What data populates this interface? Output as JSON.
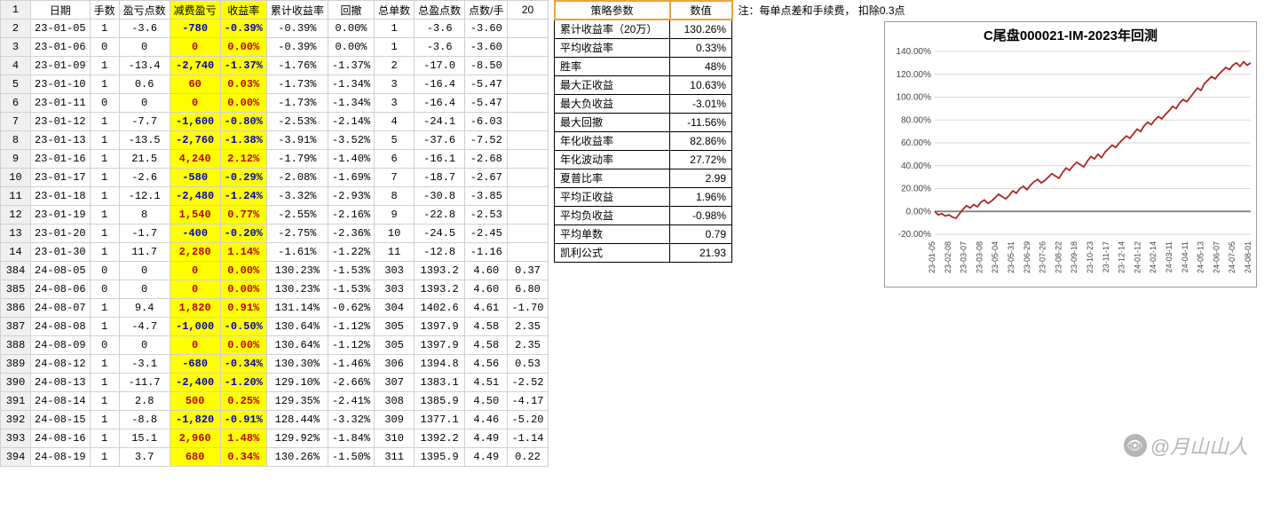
{
  "columns": [
    "日期",
    "手数",
    "盈亏点数",
    "减费盈亏",
    "收益率",
    "累计收益率",
    "回撤",
    "总单数",
    "总盈点数",
    "点数/手",
    "20"
  ],
  "rows": [
    {
      "r": 1,
      "hdr": true
    },
    {
      "r": 2,
      "d": "23-01-05",
      "l": 1,
      "p": "-3.6",
      "f": "-780",
      "rt": "-0.39%",
      "c": "-0.39%",
      "dd": "0.00%",
      "n": 1,
      "tp": "-3.6",
      "pp": "-3.60",
      "t20": ""
    },
    {
      "r": 3,
      "d": "23-01-06",
      "l": 0,
      "p": "0",
      "f": "0",
      "rt": "0.00%",
      "c": "-0.39%",
      "dd": "0.00%",
      "n": 1,
      "tp": "-3.6",
      "pp": "-3.60",
      "t20": ""
    },
    {
      "r": 4,
      "d": "23-01-09",
      "l": 1,
      "p": "-13.4",
      "f": "-2,740",
      "rt": "-1.37%",
      "c": "-1.76%",
      "dd": "-1.37%",
      "n": 2,
      "tp": "-17.0",
      "pp": "-8.50",
      "t20": ""
    },
    {
      "r": 5,
      "d": "23-01-10",
      "l": 1,
      "p": "0.6",
      "f": "60",
      "rt": "0.03%",
      "c": "-1.73%",
      "dd": "-1.34%",
      "n": 3,
      "tp": "-16.4",
      "pp": "-5.47",
      "t20": ""
    },
    {
      "r": 6,
      "d": "23-01-11",
      "l": 0,
      "p": "0",
      "f": "0",
      "rt": "0.00%",
      "c": "-1.73%",
      "dd": "-1.34%",
      "n": 3,
      "tp": "-16.4",
      "pp": "-5.47",
      "t20": ""
    },
    {
      "r": 7,
      "d": "23-01-12",
      "l": 1,
      "p": "-7.7",
      "f": "-1,600",
      "rt": "-0.80%",
      "c": "-2.53%",
      "dd": "-2.14%",
      "n": 4,
      "tp": "-24.1",
      "pp": "-6.03",
      "t20": ""
    },
    {
      "r": 8,
      "d": "23-01-13",
      "l": 1,
      "p": "-13.5",
      "f": "-2,760",
      "rt": "-1.38%",
      "c": "-3.91%",
      "dd": "-3.52%",
      "n": 5,
      "tp": "-37.6",
      "pp": "-7.52",
      "t20": ""
    },
    {
      "r": 9,
      "d": "23-01-16",
      "l": 1,
      "p": "21.5",
      "f": "4,240",
      "rt": "2.12%",
      "c": "-1.79%",
      "dd": "-1.40%",
      "n": 6,
      "tp": "-16.1",
      "pp": "-2.68",
      "t20": ""
    },
    {
      "r": 10,
      "d": "23-01-17",
      "l": 1,
      "p": "-2.6",
      "f": "-580",
      "rt": "-0.29%",
      "c": "-2.08%",
      "dd": "-1.69%",
      "n": 7,
      "tp": "-18.7",
      "pp": "-2.67",
      "t20": ""
    },
    {
      "r": 11,
      "d": "23-01-18",
      "l": 1,
      "p": "-12.1",
      "f": "-2,480",
      "rt": "-1.24%",
      "c": "-3.32%",
      "dd": "-2.93%",
      "n": 8,
      "tp": "-30.8",
      "pp": "-3.85",
      "t20": ""
    },
    {
      "r": 12,
      "d": "23-01-19",
      "l": 1,
      "p": "8",
      "f": "1,540",
      "rt": "0.77%",
      "c": "-2.55%",
      "dd": "-2.16%",
      "n": 9,
      "tp": "-22.8",
      "pp": "-2.53",
      "t20": ""
    },
    {
      "r": 13,
      "d": "23-01-20",
      "l": 1,
      "p": "-1.7",
      "f": "-400",
      "rt": "-0.20%",
      "c": "-2.75%",
      "dd": "-2.36%",
      "n": 10,
      "tp": "-24.5",
      "pp": "-2.45",
      "t20": ""
    },
    {
      "r": 14,
      "d": "23-01-30",
      "l": 1,
      "p": "11.7",
      "f": "2,280",
      "rt": "1.14%",
      "c": "-1.61%",
      "dd": "-1.22%",
      "n": 11,
      "tp": "-12.8",
      "pp": "-1.16",
      "t20": ""
    },
    {
      "r": 384,
      "d": "24-08-05",
      "l": 0,
      "p": "0",
      "f": "0",
      "rt": "0.00%",
      "c": "130.23%",
      "dd": "-1.53%",
      "n": 303,
      "tp": "1393.2",
      "pp": "4.60",
      "t20": "0.37"
    },
    {
      "r": 385,
      "d": "24-08-06",
      "l": 0,
      "p": "0",
      "f": "0",
      "rt": "0.00%",
      "c": "130.23%",
      "dd": "-1.53%",
      "n": 303,
      "tp": "1393.2",
      "pp": "4.60",
      "t20": "6.80"
    },
    {
      "r": 386,
      "d": "24-08-07",
      "l": 1,
      "p": "9.4",
      "f": "1,820",
      "rt": "0.91%",
      "c": "131.14%",
      "dd": "-0.62%",
      "n": 304,
      "tp": "1402.6",
      "pp": "4.61",
      "t20": "-1.70"
    },
    {
      "r": 387,
      "d": "24-08-08",
      "l": 1,
      "p": "-4.7",
      "f": "-1,000",
      "rt": "-0.50%",
      "c": "130.64%",
      "dd": "-1.12%",
      "n": 305,
      "tp": "1397.9",
      "pp": "4.58",
      "t20": "2.35"
    },
    {
      "r": 388,
      "d": "24-08-09",
      "l": 0,
      "p": "0",
      "f": "0",
      "rt": "0.00%",
      "c": "130.64%",
      "dd": "-1.12%",
      "n": 305,
      "tp": "1397.9",
      "pp": "4.58",
      "t20": "2.35"
    },
    {
      "r": 389,
      "d": "24-08-12",
      "l": 1,
      "p": "-3.1",
      "f": "-680",
      "rt": "-0.34%",
      "c": "130.30%",
      "dd": "-1.46%",
      "n": 306,
      "tp": "1394.8",
      "pp": "4.56",
      "t20": "0.53"
    },
    {
      "r": 390,
      "d": "24-08-13",
      "l": 1,
      "p": "-11.7",
      "f": "-2,400",
      "rt": "-1.20%",
      "c": "129.10%",
      "dd": "-2.66%",
      "n": 307,
      "tp": "1383.1",
      "pp": "4.51",
      "t20": "-2.52"
    },
    {
      "r": 391,
      "d": "24-08-14",
      "l": 1,
      "p": "2.8",
      "f": "500",
      "rt": "0.25%",
      "c": "129.35%",
      "dd": "-2.41%",
      "n": 308,
      "tp": "1385.9",
      "pp": "4.50",
      "t20": "-4.17"
    },
    {
      "r": 392,
      "d": "24-08-15",
      "l": 1,
      "p": "-8.8",
      "f": "-1,820",
      "rt": "-0.91%",
      "c": "128.44%",
      "dd": "-3.32%",
      "n": 309,
      "tp": "1377.1",
      "pp": "4.46",
      "t20": "-5.20"
    },
    {
      "r": 393,
      "d": "24-08-16",
      "l": 1,
      "p": "15.1",
      "f": "2,960",
      "rt": "1.48%",
      "c": "129.92%",
      "dd": "-1.84%",
      "n": 310,
      "tp": "1392.2",
      "pp": "4.49",
      "t20": "-1.14"
    },
    {
      "r": 394,
      "d": "24-08-19",
      "l": 1,
      "p": "3.7",
      "f": "680",
      "rt": "0.34%",
      "c": "130.26%",
      "dd": "-1.50%",
      "n": 311,
      "tp": "1395.9",
      "pp": "4.49",
      "t20": "0.22"
    }
  ],
  "params_header": [
    "策略参数",
    "数值"
  ],
  "note": "注：每单点差和手续费，  扣除0.3点",
  "params": [
    [
      "累计收益率（20万）",
      "130.26%"
    ],
    [
      "平均收益率",
      "0.33%"
    ],
    [
      "胜率",
      "48%"
    ],
    [
      "最大正收益",
      "10.63%"
    ],
    [
      "最大负收益",
      "-3.01%"
    ],
    [
      "最大回撤",
      "-11.56%"
    ],
    [
      "年化收益率",
      "82.86%"
    ],
    [
      "年化波动率",
      "27.72%"
    ],
    [
      "夏普比率",
      "2.99"
    ],
    [
      "平均正收益",
      "1.96%"
    ],
    [
      "平均负收益",
      "-0.98%"
    ],
    [
      "平均单数",
      "0.79"
    ],
    [
      "凯利公式",
      "21.93"
    ]
  ],
  "chart": {
    "title": "C尾盘000021-IM-2023年回测",
    "yticks": [
      "-20.00%",
      "0.00%",
      "20.00%",
      "40.00%",
      "60.00%",
      "80.00%",
      "100.00%",
      "120.00%",
      "140.00%"
    ],
    "xticks": [
      "23-01-05",
      "23-02-08",
      "23-03-07",
      "23-03-08",
      "23-05-04",
      "23-05-31",
      "23-06-29",
      "23-07-26",
      "23-08-22",
      "23-09-18",
      "23-10-23",
      "23-11-17",
      "23-12-14",
      "24-01-12",
      "24-02-14",
      "24-03-11",
      "24-04-11",
      "24-05-13",
      "24-06-07",
      "24-07-05",
      "24-08-01"
    ],
    "line_color": "#ad2623",
    "grid_color": "#d9d9d9",
    "zero_bold": "#888888",
    "series": [
      0,
      -3,
      -2,
      -4,
      -3,
      -5,
      -6,
      -2,
      2,
      5,
      3,
      6,
      4,
      8,
      10,
      7,
      9,
      12,
      15,
      13,
      11,
      14,
      18,
      16,
      20,
      22,
      19,
      23,
      26,
      28,
      25,
      27,
      30,
      33,
      31,
      29,
      34,
      38,
      36,
      40,
      43,
      41,
      39,
      44,
      48,
      46,
      50,
      47,
      52,
      55,
      58,
      56,
      60,
      63,
      66,
      64,
      68,
      72,
      70,
      75,
      78,
      76,
      80,
      83,
      81,
      85,
      88,
      92,
      90,
      95,
      98,
      96,
      100,
      104,
      108,
      106,
      112,
      115,
      118,
      116,
      120,
      123,
      126,
      124,
      128,
      130,
      127,
      131,
      128,
      130
    ]
  },
  "watermark": "@月山山人"
}
